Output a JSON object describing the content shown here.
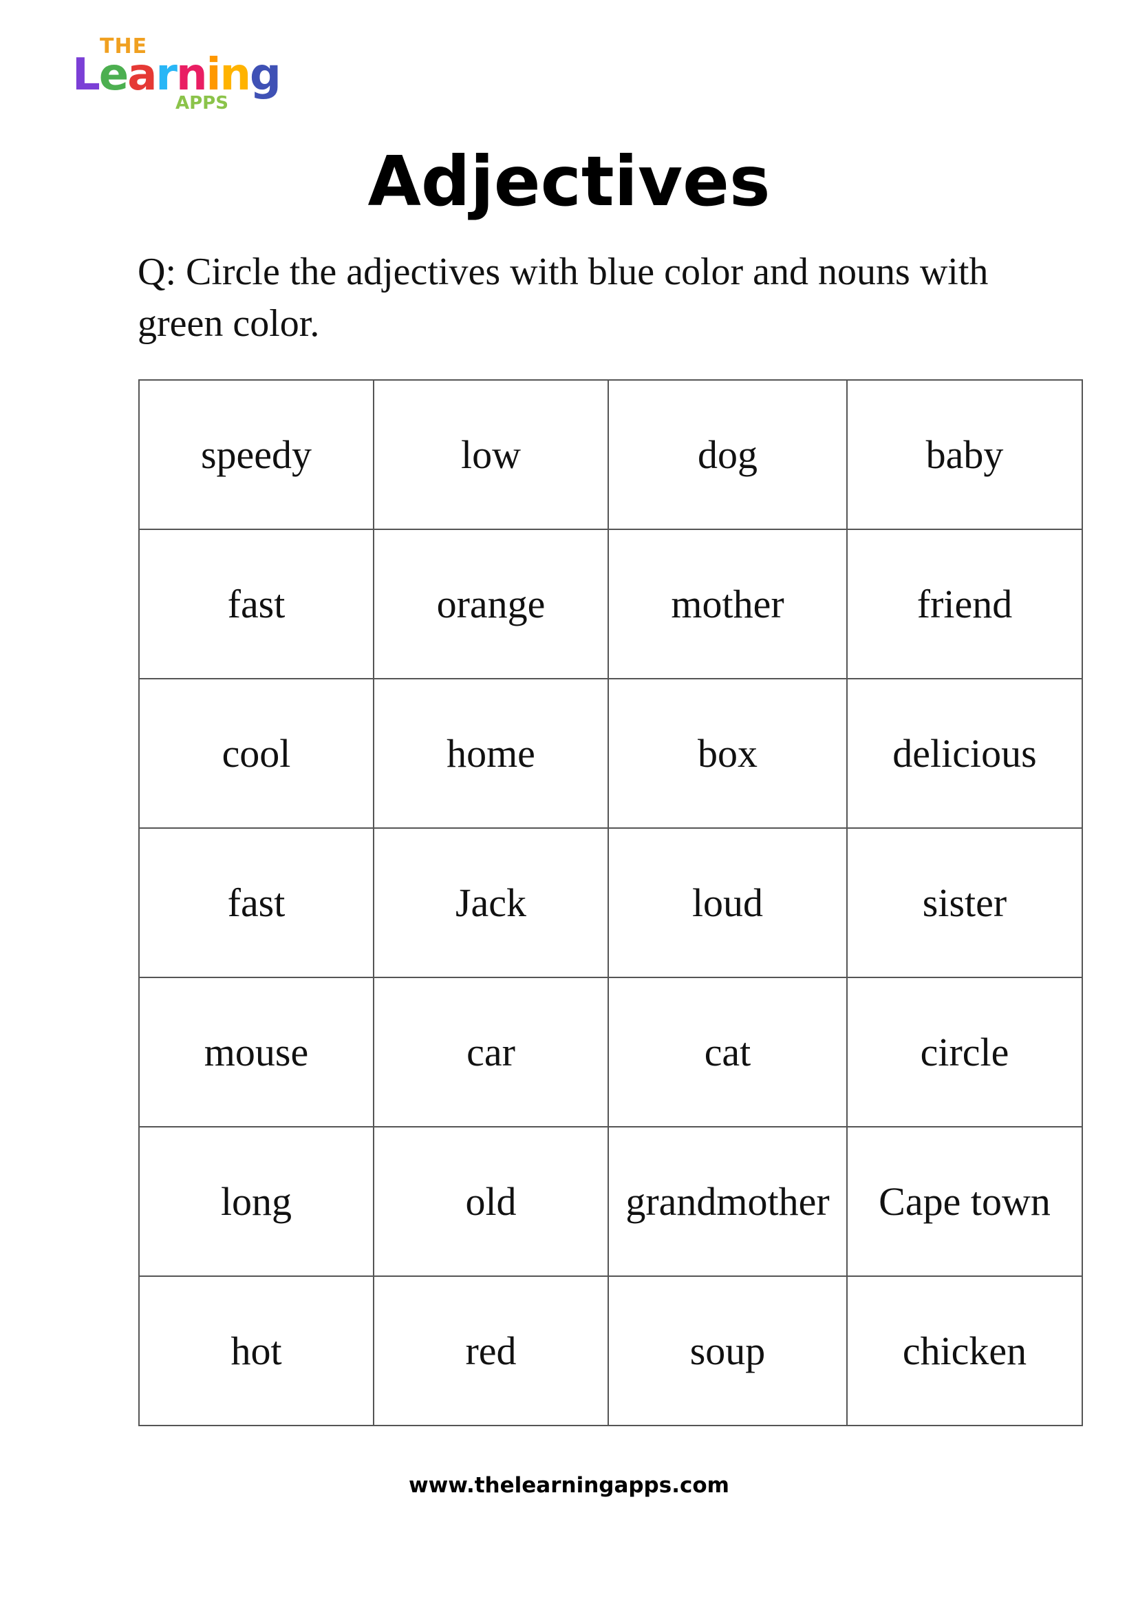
{
  "logo": {
    "text": "The Learning Apps",
    "colors": [
      "#7b3fd6",
      "#4caf50",
      "#e53935",
      "#29b6f6",
      "#e91e63",
      "#ff9800",
      "#3f51b5"
    ]
  },
  "title": "Adjectives",
  "question": "Q: Circle the adjectives with blue color and nouns with green color.",
  "table": {
    "rows": [
      [
        "speedy",
        "low",
        "dog",
        "baby"
      ],
      [
        "fast",
        "orange",
        "mother",
        "friend"
      ],
      [
        "cool",
        "home",
        "box",
        "delicious"
      ],
      [
        "fast",
        "Jack",
        "loud",
        "sister"
      ],
      [
        "mouse",
        "car",
        "cat",
        "circle"
      ],
      [
        "long",
        "old",
        "grandmother",
        "Cape town"
      ],
      [
        "hot",
        "red",
        "soup",
        "chicken"
      ]
    ]
  },
  "footer": "www.thelearningapps.com"
}
